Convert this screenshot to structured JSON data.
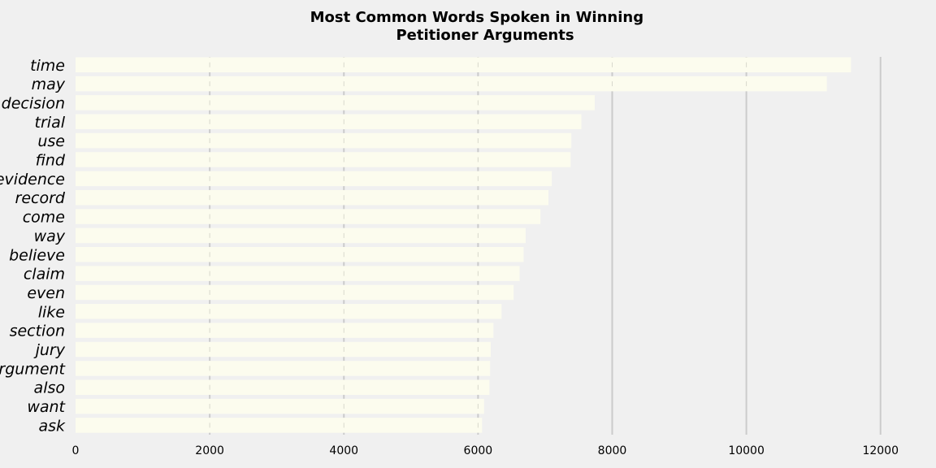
{
  "chart_data": {
    "type": "bar",
    "orientation": "horizontal",
    "title": "Most Common Words Spoken in Winning\nPetitioner Arguments",
    "title_lines": [
      "Most Common Words Spoken in Winning",
      "Petitioner Arguments"
    ],
    "xlabel": "",
    "ylabel": "",
    "categories": [
      "time",
      "may",
      "decision",
      "trial",
      "use",
      "find",
      "evidence",
      "record",
      "come",
      "way",
      "believe",
      "claim",
      "even",
      "like",
      "section",
      "jury",
      "argument",
      "also",
      "want",
      "ask"
    ],
    "values": [
      11560,
      11200,
      7740,
      7540,
      7390,
      7380,
      7100,
      7050,
      6930,
      6710,
      6680,
      6620,
      6530,
      6350,
      6230,
      6190,
      6180,
      6170,
      6090,
      6060
    ],
    "xlim": [
      0,
      12500
    ],
    "xticks": [
      0,
      2000,
      4000,
      6000,
      8000,
      10000,
      12000
    ],
    "grid": "x",
    "legend": "none",
    "bar_color": "#fcfcee",
    "background_color": "#f0f0f0",
    "grid_color": "#cbcbcb"
  }
}
